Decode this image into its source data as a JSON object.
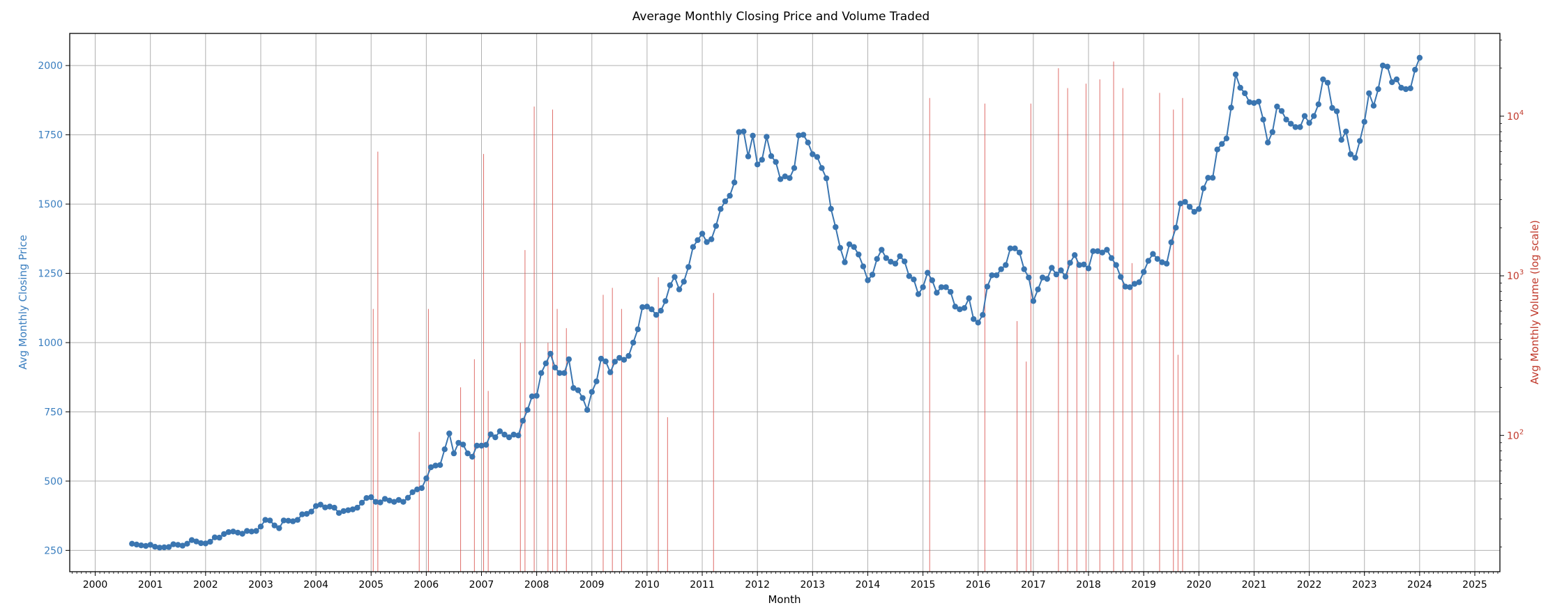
{
  "chart_data": {
    "type": "line",
    "title": "Average Monthly Closing Price and Volume Traded",
    "xlabel": "Month",
    "ylabel_left": "Avg Monthly Closing Price",
    "ylabel_right": "Avg Monthly Volume (log scale)",
    "x_range": [
      "1999-07-15",
      "2025-06-15"
    ],
    "x_ticks": [
      "2000",
      "2001",
      "2002",
      "2003",
      "2004",
      "2005",
      "2006",
      "2007",
      "2008",
      "2009",
      "2010",
      "2011",
      "2012",
      "2013",
      "2014",
      "2015",
      "2016",
      "2017",
      "2018",
      "2019",
      "2020",
      "2021",
      "2022",
      "2023",
      "2024",
      "2025"
    ],
    "y_left_range": [
      173,
      2116
    ],
    "y_left_ticks": [
      250,
      500,
      750,
      1000,
      1250,
      1500,
      1750,
      2000
    ],
    "y_right_scale": "log",
    "y_right_range": [
      14,
      33000
    ],
    "y_right_ticks": [
      {
        "value": 100,
        "label": "10",
        "exp": "2"
      },
      {
        "value": 1000,
        "label": "10",
        "exp": "3"
      },
      {
        "value": 10000,
        "label": "10",
        "exp": "4"
      }
    ],
    "grid": true,
    "colors": {
      "price": "#3a75b0",
      "volume": "#d9534f",
      "left_axis": "#3a7ebf",
      "right_axis": "#c0392b"
    },
    "series": [
      {
        "axis": "left",
        "type": "line",
        "start_month": "2000-09",
        "values": [
          274,
          271,
          268,
          266,
          270,
          263,
          260,
          261,
          262,
          272,
          270,
          267,
          274,
          287,
          282,
          276,
          275,
          281,
          297,
          296,
          309,
          316,
          318,
          314,
          310,
          320,
          318,
          320,
          336,
          360,
          358,
          340,
          330,
          358,
          357,
          355,
          360,
          380,
          382,
          390,
          410,
          415,
          405,
          408,
          404,
          385,
          392,
          395,
          398,
          404,
          422,
          439,
          442,
          425,
          423,
          436,
          430,
          425,
          432,
          425,
          440,
          460,
          470,
          475,
          510,
          550,
          556,
          558,
          615,
          672,
          600,
          638,
          632,
          600,
          588,
          628,
          628,
          631,
          669,
          658,
          680,
          668,
          658,
          668,
          665,
          718,
          757,
          806,
          808,
          890,
          925,
          960,
          910,
          890,
          890,
          940,
          836,
          828,
          800,
          757,
          822,
          860,
          942,
          932,
          893,
          931,
          945,
          938,
          952,
          1000,
          1048,
          1128,
          1130,
          1120,
          1100,
          1115,
          1150,
          1207,
          1237,
          1192,
          1220,
          1273,
          1345,
          1370,
          1393,
          1363,
          1373,
          1421,
          1482,
          1510,
          1530,
          1578,
          1760,
          1762,
          1672,
          1747,
          1643,
          1660,
          1743,
          1673,
          1652,
          1590,
          1600,
          1594,
          1630,
          1748,
          1750,
          1722,
          1680,
          1670,
          1630,
          1593,
          1483,
          1417,
          1342,
          1290,
          1355,
          1345,
          1318,
          1275,
          1225,
          1245,
          1302,
          1335,
          1305,
          1292,
          1285,
          1312,
          1293,
          1240,
          1228,
          1175,
          1200,
          1252,
          1225,
          1180,
          1200,
          1200,
          1183,
          1130,
          1120,
          1125,
          1160,
          1085,
          1072,
          1100,
          1202,
          1243,
          1243,
          1265,
          1280,
          1340,
          1340,
          1325,
          1265,
          1235,
          1150,
          1192,
          1235,
          1230,
          1270,
          1246,
          1261,
          1238,
          1288,
          1316,
          1280,
          1282,
          1268,
          1330,
          1330,
          1325,
          1335,
          1305,
          1280,
          1237,
          1202,
          1200,
          1212,
          1218,
          1255,
          1295,
          1320,
          1302,
          1290,
          1285,
          1362,
          1415,
          1502,
          1508,
          1490,
          1472,
          1482,
          1557,
          1595,
          1595,
          1697,
          1717,
          1737,
          1848,
          1968,
          1920,
          1900,
          1868,
          1865,
          1870,
          1805,
          1722,
          1760,
          1852,
          1836,
          1805,
          1790,
          1778,
          1778,
          1818,
          1793,
          1818,
          1860,
          1950,
          1938,
          1847,
          1835,
          1732,
          1762,
          1680,
          1667,
          1728,
          1797,
          1900,
          1855,
          1915,
          2000,
          1996,
          1940,
          1950,
          1920,
          1915,
          1918,
          1985,
          2028
        ]
      },
      {
        "axis": "right",
        "type": "spike",
        "name": "volume",
        "points": [
          {
            "x": "2005-01",
            "v": 620
          },
          {
            "x": "2005-02",
            "v": 6000
          },
          {
            "x": "2005-11",
            "v": 105
          },
          {
            "x": "2006-01",
            "v": 620
          },
          {
            "x": "2006-08",
            "v": 200
          },
          {
            "x": "2006-11",
            "v": 300
          },
          {
            "x": "2007-01",
            "v": 5800
          },
          {
            "x": "2007-02",
            "v": 190
          },
          {
            "x": "2007-09",
            "v": 380
          },
          {
            "x": "2007-10",
            "v": 1450
          },
          {
            "x": "2007-12",
            "v": 11500
          },
          {
            "x": "2008-03",
            "v": 380
          },
          {
            "x": "2008-04",
            "v": 11000
          },
          {
            "x": "2008-05",
            "v": 620
          },
          {
            "x": "2008-07",
            "v": 470
          },
          {
            "x": "2009-03",
            "v": 760
          },
          {
            "x": "2009-05",
            "v": 840
          },
          {
            "x": "2009-07",
            "v": 620
          },
          {
            "x": "2010-03",
            "v": 980
          },
          {
            "x": "2010-05",
            "v": 130
          },
          {
            "x": "2011-03",
            "v": 780
          },
          {
            "x": "2015-02",
            "v": 13000
          },
          {
            "x": "2016-02",
            "v": 12000
          },
          {
            "x": "2016-09",
            "v": 520
          },
          {
            "x": "2016-11",
            "v": 290
          },
          {
            "x": "2016-12",
            "v": 12000
          },
          {
            "x": "2017-06",
            "v": 20000
          },
          {
            "x": "2017-08",
            "v": 15000
          },
          {
            "x": "2017-10",
            "v": 1300
          },
          {
            "x": "2017-12",
            "v": 16000
          },
          {
            "x": "2018-03",
            "v": 17000
          },
          {
            "x": "2018-06",
            "v": 22000
          },
          {
            "x": "2018-08",
            "v": 15000
          },
          {
            "x": "2018-10",
            "v": 1200
          },
          {
            "x": "2019-04",
            "v": 14000
          },
          {
            "x": "2019-07",
            "v": 11000
          },
          {
            "x": "2019-08",
            "v": 320
          },
          {
            "x": "2019-09",
            "v": 13000
          }
        ]
      }
    ]
  }
}
